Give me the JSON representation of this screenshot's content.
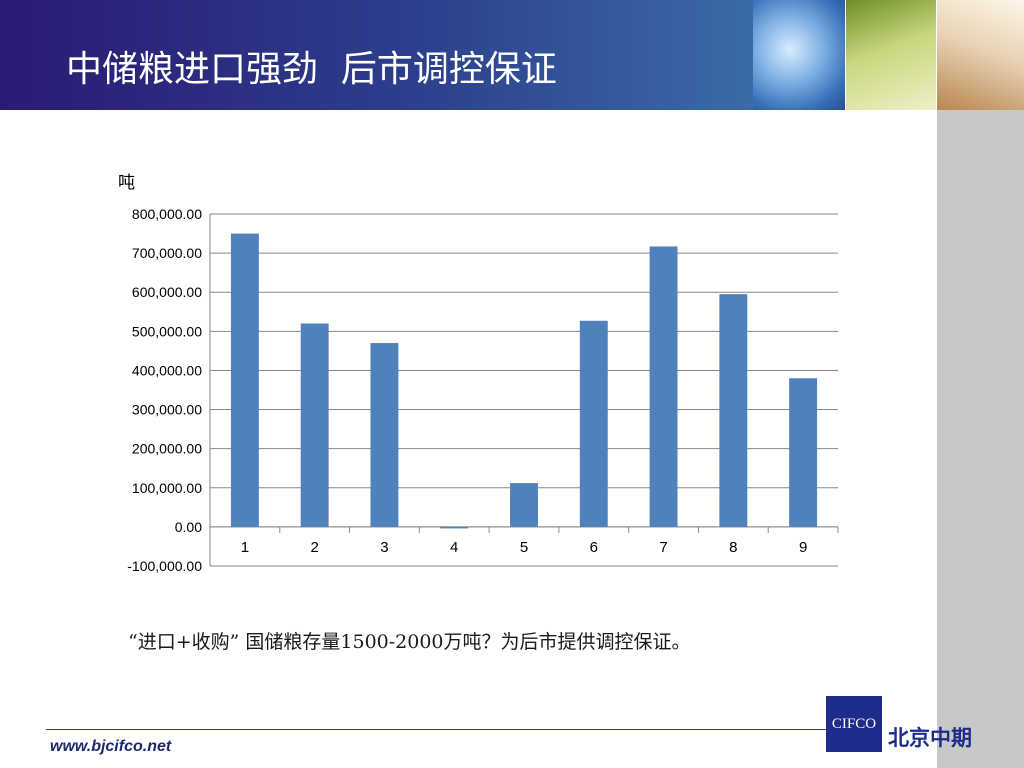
{
  "header": {
    "title": "中储粮进口强劲  后市调控保证"
  },
  "chart_data": {
    "type": "bar",
    "unit_label": "吨",
    "categories": [
      "1",
      "2",
      "3",
      "4",
      "5",
      "6",
      "7",
      "8",
      "9"
    ],
    "values": [
      750000,
      520000,
      470000,
      -3000,
      112000,
      527000,
      717000,
      595000,
      380000
    ],
    "ylim": [
      -100000,
      800000
    ],
    "yticks": [
      "800,000.00",
      "700,000.00",
      "600,000.00",
      "500,000.00",
      "400,000.00",
      "300,000.00",
      "200,000.00",
      "100,000.00",
      "0.00",
      "-100,000.00"
    ],
    "ytick_values": [
      800000,
      700000,
      600000,
      500000,
      400000,
      300000,
      200000,
      100000,
      0,
      -100000
    ],
    "grid": true,
    "bar_color": "#4f81bd",
    "grid_color": "#888888"
  },
  "caption": "“进口+收购”  国储粮存量1500-2000万吨？为后市提供调控保证。",
  "footer": {
    "website": "www.bjcifco.net",
    "logo_text": "CIFCO",
    "company": "北京中期"
  },
  "colors": {
    "header_dark": "#2a1a73",
    "sidebar": "#c8c8c8",
    "logo_blue": "#1e2b8a"
  }
}
